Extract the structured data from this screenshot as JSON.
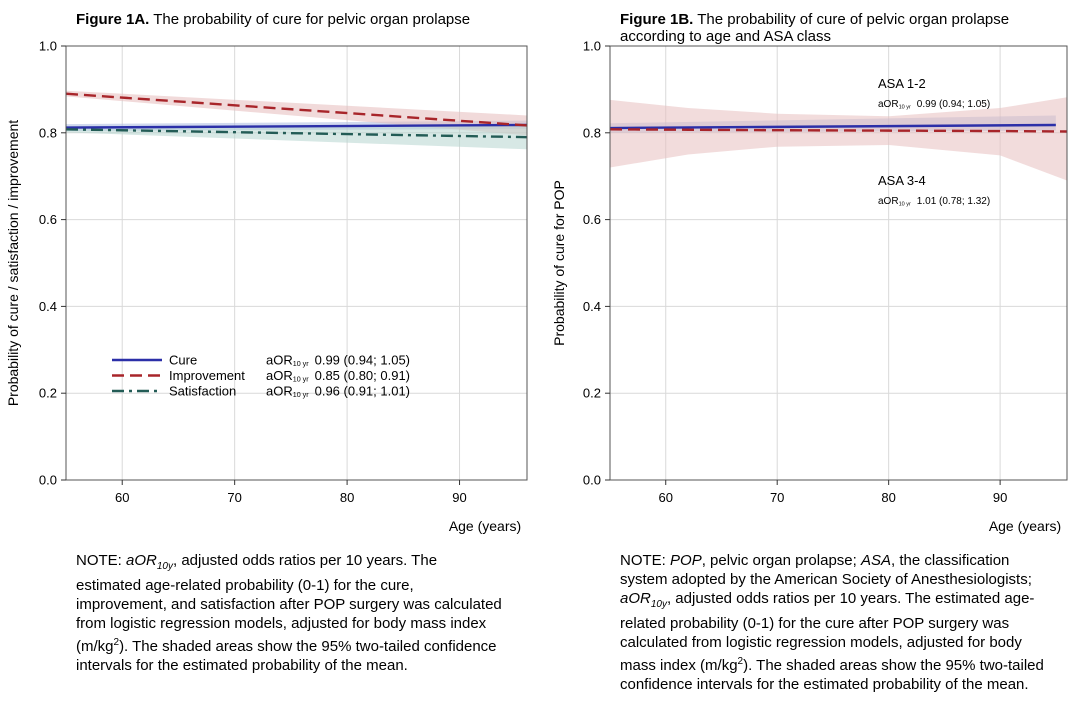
{
  "figure_a": {
    "title_bold": "Figure 1A.",
    "title_rest": " The probability of cure for pelvic organ prolapse",
    "note": {
      "prefix": "NOTE: ",
      "abbr": "aOR",
      "abbr_sub": "10y",
      "p1": ", adjusted odds ratios per 10 years. The estimated age-related probability (0-1) for the cure, improvement, and satisfaction after POP surgery was calculated from logistic regression models, adjusted for body mass index (m/kg",
      "sup": "2",
      "p2": "). The shaded areas show the 95% two-tailed confidence intervals for the estimated probability of the mean."
    }
  },
  "figure_b": {
    "title_bold": "Figure 1B.",
    "title_rest": " The probability of cure of pelvic organ prolapse",
    "title_line2": "according to age and ASA class",
    "note": {
      "prefix": "NOTE: ",
      "abbr1": "POP",
      "t1": ", pelvic organ prolapse; ",
      "abbr2": "ASA",
      "t2": ", the classification system adopted by the American Society of Anesthesiologists; ",
      "abbr3": "aOR",
      "abbr3_sub": "10y",
      "p1": ", adjusted odds ratios per 10 years. The estimated age-related probability (0-1) for the cure after POP surgery was calculated from logistic regression models, adjusted for body mass index (m/kg",
      "sup": "2",
      "p2": "). The shaded areas show the 95% two-tailed confidence intervals for the estimated probability of the mean."
    }
  },
  "chart_data": [
    {
      "type": "line",
      "xlabel": "Age (years)",
      "ylabel": "Probability of cure / satisfaction / improvement",
      "xlim": [
        55,
        96
      ],
      "ylim": [
        0,
        1
      ],
      "xticks": [
        60,
        70,
        80,
        90
      ],
      "yticks": [
        0.0,
        0.2,
        0.4,
        0.6,
        0.8,
        1.0
      ],
      "ytick_labels": [
        "0.0",
        "0.2",
        "0.4",
        "0.6",
        "0.8",
        "1.0"
      ],
      "grid": true,
      "legend_position": "lower-left",
      "x": [
        55,
        96
      ],
      "series": [
        {
          "name": "Cure",
          "color": "#2b2fa8",
          "dash": "solid",
          "band_color": "#a9b9e0",
          "y": [
            0.812,
            0.818
          ],
          "ci_low": [
            0.804,
            0.809
          ],
          "ci_high": [
            0.82,
            0.828
          ],
          "stat_label": "aOR",
          "stat_sub": "10 yr",
          "stat_value": "0.99 (0.94; 1.05)"
        },
        {
          "name": "Improvement",
          "color": "#a8252a",
          "dash": "long-dash",
          "band_color": "#e6bcbc",
          "y": [
            0.89,
            0.817
          ],
          "ci_low": [
            0.884,
            0.794
          ],
          "ci_high": [
            0.897,
            0.84
          ],
          "stat_label": "aOR",
          "stat_sub": "10 yr",
          "stat_value": "0.85 (0.80; 0.91)"
        },
        {
          "name": "Satisfaction",
          "color": "#235c56",
          "dash": "dash-dot",
          "band_color": "#b7d6d0",
          "y": [
            0.808,
            0.79
          ],
          "ci_low": [
            0.801,
            0.762
          ],
          "ci_high": [
            0.815,
            0.815
          ],
          "stat_label": "aOR",
          "stat_sub": "10 yr",
          "stat_value": "0.96 (0.91; 1.01)"
        }
      ]
    },
    {
      "type": "line",
      "xlabel": "Age (years)",
      "ylabel": "Probability of cure for POP",
      "xlim": [
        55,
        96
      ],
      "ylim": [
        0,
        1
      ],
      "xticks": [
        60,
        70,
        80,
        90
      ],
      "yticks": [
        0.0,
        0.2,
        0.4,
        0.6,
        0.8,
        1.0
      ],
      "ytick_labels": [
        "0.0",
        "0.2",
        "0.4",
        "0.6",
        "0.8",
        "1.0"
      ],
      "grid": true,
      "series": [
        {
          "name": "ASA 1-2",
          "color": "#2b2fa8",
          "dash": "solid",
          "band_color": "#a9b9e0",
          "x": [
            55,
            95
          ],
          "y": [
            0.811,
            0.818
          ],
          "ci_low": [
            0.8,
            0.805
          ],
          "ci_high": [
            0.822,
            0.84
          ],
          "stat_label": "aOR",
          "stat_sub": "10 yr",
          "stat_value": "0.99 (0.94; 1.05)"
        },
        {
          "name": "ASA 3-4",
          "color": "#a8252a",
          "dash": "long-dash",
          "band_color": "#e7c0c0",
          "x": [
            55,
            62,
            70,
            80,
            90,
            96
          ],
          "y": [
            0.808,
            0.807,
            0.806,
            0.805,
            0.804,
            0.803
          ],
          "ci_low": [
            0.72,
            0.75,
            0.768,
            0.772,
            0.748,
            0.69
          ],
          "ci_high": [
            0.876,
            0.857,
            0.844,
            0.838,
            0.857,
            0.882
          ],
          "stat_label": "aOR",
          "stat_sub": "10 yr",
          "stat_value": "1.01 (0.78; 1.32)"
        }
      ]
    }
  ]
}
